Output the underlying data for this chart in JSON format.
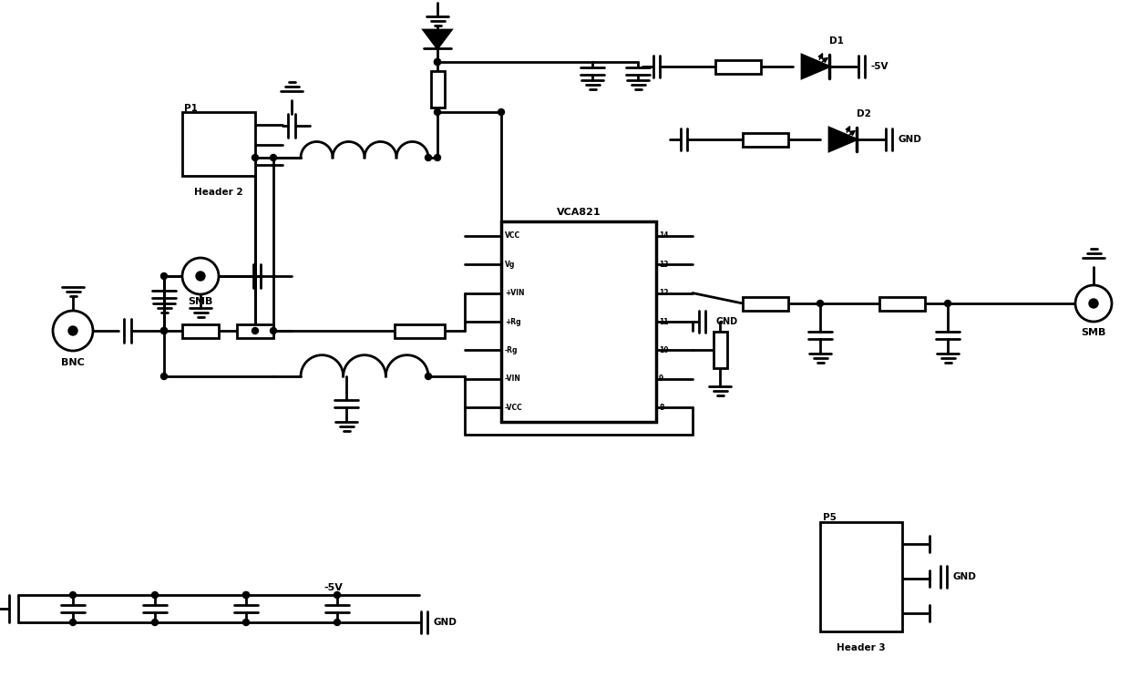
{
  "bg": "#ffffff",
  "lc": "#000000",
  "lw": 2.0,
  "ic_label": "VCA821",
  "ic_pins_left": [
    "VCC",
    "Vg",
    "+VIN",
    "+Rg",
    "-Rg",
    "-VIN",
    "-VCC"
  ],
  "ic_pins_right": [
    "14",
    "13",
    "12",
    "11",
    "10",
    "9",
    "8"
  ],
  "label_bnc": "BNC",
  "label_smb_l": "SMB",
  "label_smb_r": "SMB",
  "label_hdr2": "Header 2",
  "label_hdr3": "Header 3",
  "label_p1": "P1",
  "label_p5": "P5",
  "label_d1": "D1",
  "label_d2": "D2",
  "label_m5v": "-5V",
  "label_gnd": "GND"
}
